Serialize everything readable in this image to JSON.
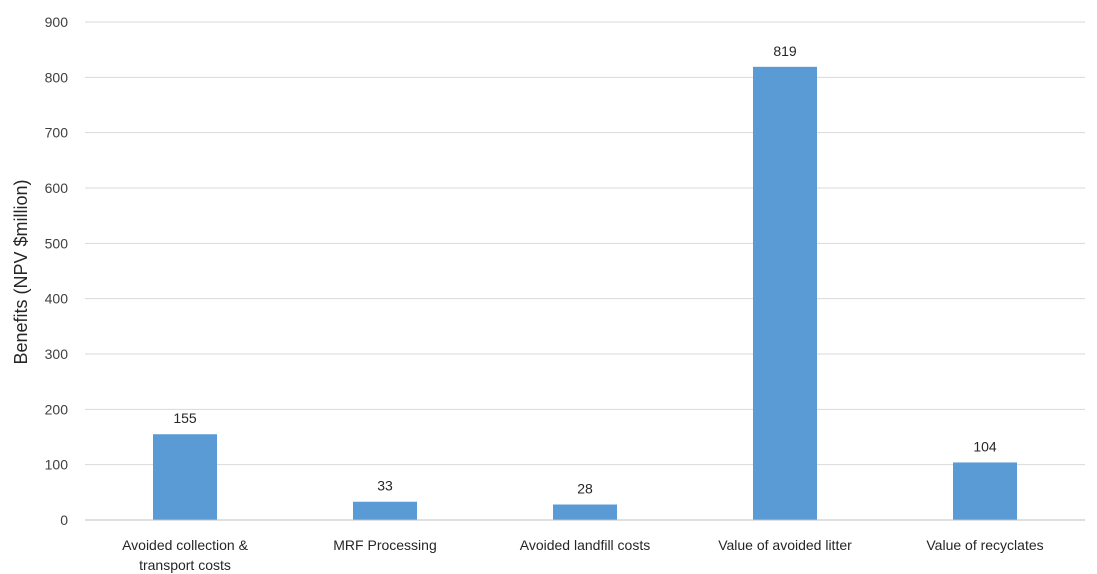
{
  "chart_data": {
    "type": "bar",
    "title": "",
    "xlabel": "",
    "ylabel": "Benefits (NPV $million)",
    "ylim": [
      0,
      900
    ],
    "yticks": [
      0,
      100,
      200,
      300,
      400,
      500,
      600,
      700,
      800,
      900
    ],
    "categories": [
      [
        "Avoided collection &",
        "transport costs"
      ],
      [
        "MRF Processing"
      ],
      [
        "Avoided landfill costs"
      ],
      [
        "Value of avoided litter"
      ],
      [
        "Value of recyclates"
      ]
    ],
    "values": [
      155,
      33,
      28,
      819,
      104
    ],
    "data_labels": [
      "155",
      "33",
      "28",
      "819",
      "104"
    ],
    "grid": true,
    "legend": "none",
    "colors": {
      "bar": "#5b9bd5",
      "grid": "#d9d9d9",
      "axis": "#bfbfbf"
    }
  }
}
